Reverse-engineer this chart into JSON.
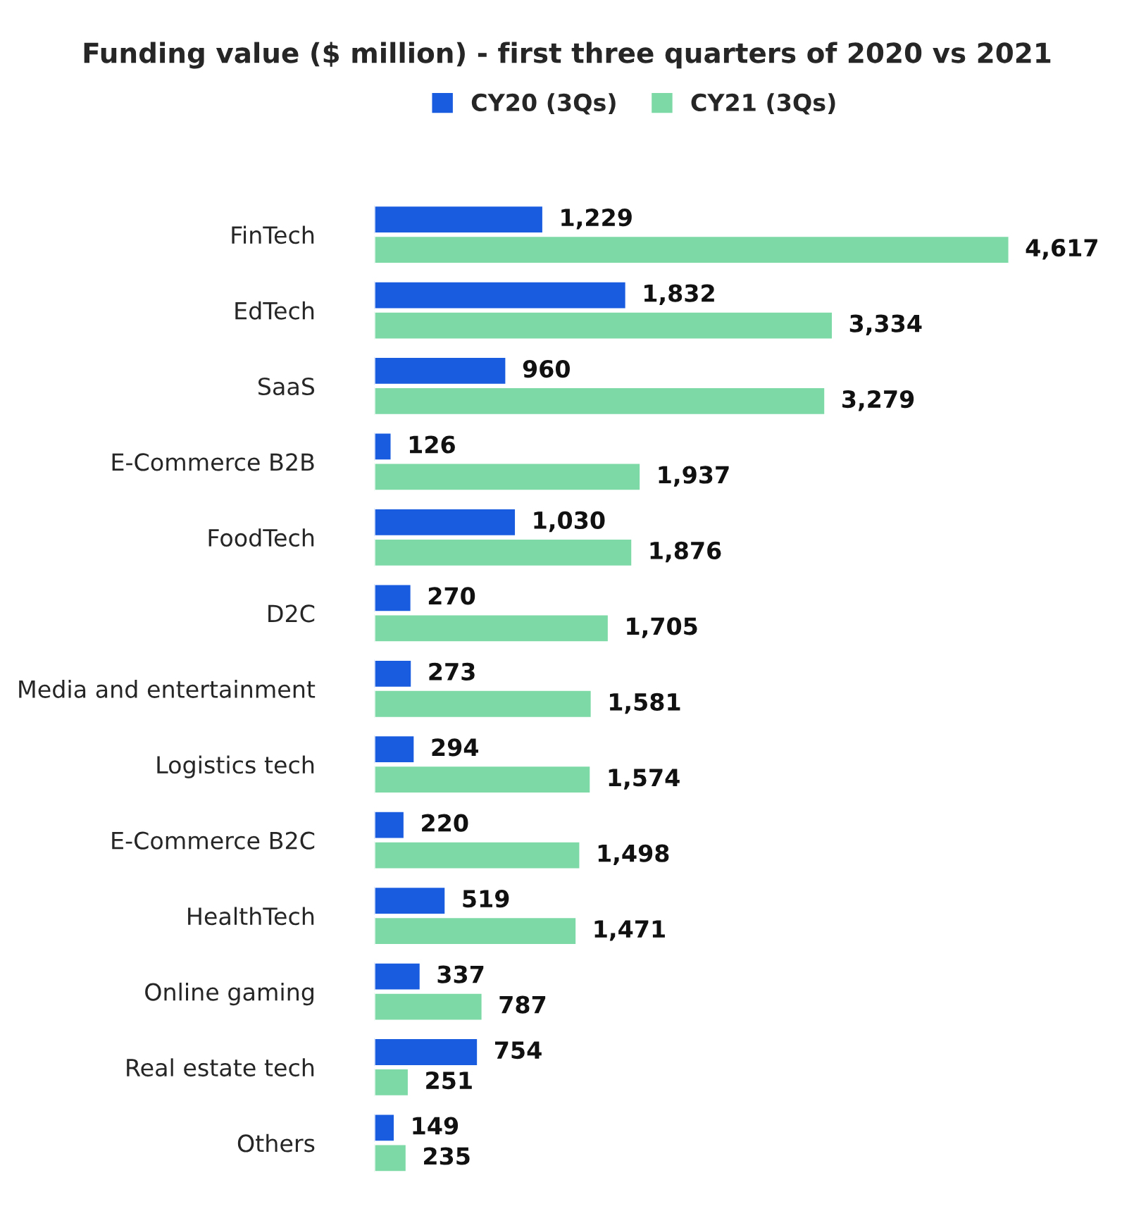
{
  "chart_data": {
    "type": "bar",
    "orientation": "horizontal",
    "title": "Funding value ($ million) - first three quarters of 2020 vs 2021",
    "categories": [
      "FinTech",
      "EdTech",
      "SaaS",
      "E-Commerce B2B",
      "FoodTech",
      "D2C",
      "Media and entertainment",
      "Logistics tech",
      "E-Commerce B2C",
      "HealthTech",
      "Online gaming",
      "Real estate tech",
      "Others"
    ],
    "series": [
      {
        "name": "CY20 (3Qs)",
        "color": "#1a5ce0",
        "values": [
          1229,
          1832,
          960,
          126,
          1030,
          270,
          273,
          294,
          220,
          519,
          337,
          754,
          149
        ],
        "value_labels": [
          "1,229",
          "1,832",
          "960",
          "126",
          "1,030",
          "270",
          "273",
          "294",
          "220",
          "519",
          "337",
          "754",
          "149"
        ]
      },
      {
        "name": "CY21 (3Qs)",
        "color": "#7dd9a6",
        "values": [
          4617,
          3334,
          3279,
          1937,
          1876,
          1705,
          1581,
          1574,
          1498,
          1471,
          787,
          251,
          235
        ],
        "value_labels": [
          "4,617",
          "3,334",
          "3,279",
          "1,937",
          "1,876",
          "1,705",
          "1,581",
          "1,574",
          "1,498",
          "1,471",
          "787",
          "251",
          "235"
        ]
      }
    ],
    "legend": "top",
    "grid": false
  }
}
